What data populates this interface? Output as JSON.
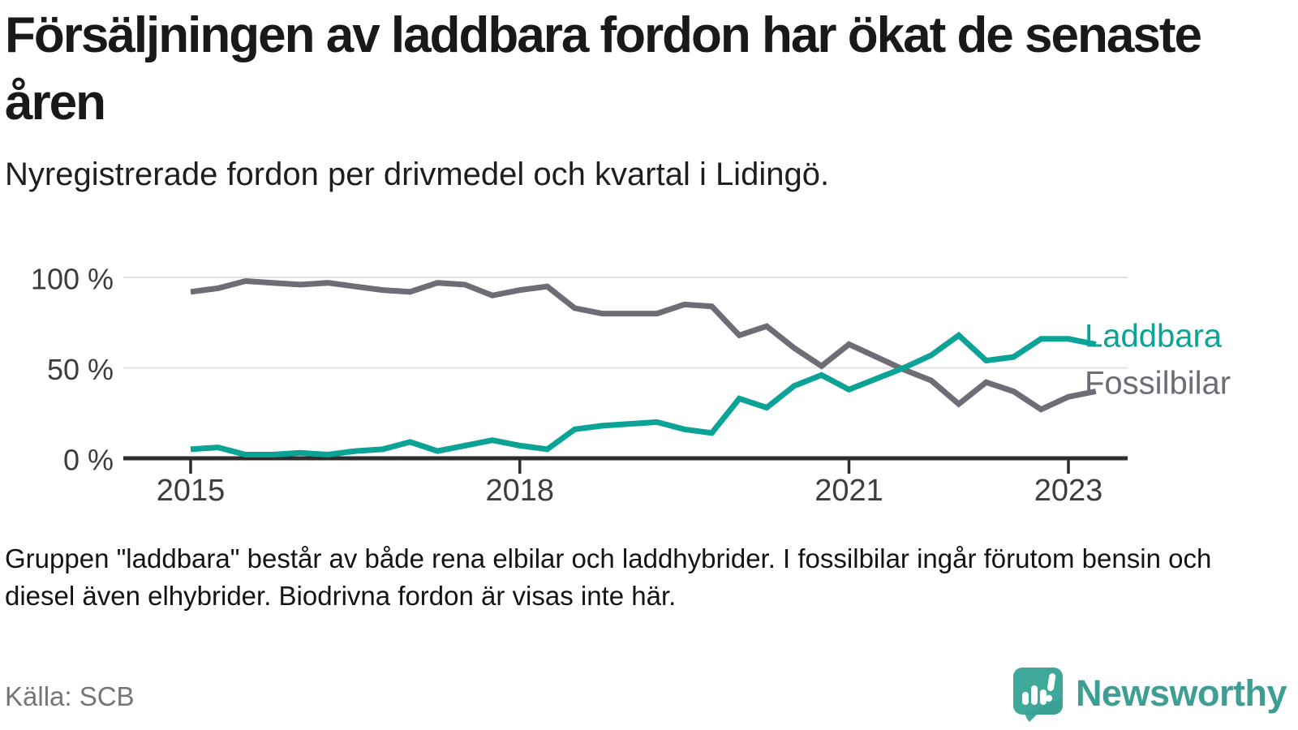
{
  "header": {
    "title": "Försäljningen av laddbara fordon har ökat de senaste åren",
    "subtitle": "Nyregistrerade fordon per drivmedel och kvartal i Lidingö."
  },
  "chart_data": {
    "type": "line",
    "title": "Nyregistrerade fordon per drivmedel och kvartal i Lidingö",
    "x_unit": "quarter",
    "categories": [
      "2015-Q1",
      "2015-Q2",
      "2015-Q3",
      "2015-Q4",
      "2016-Q1",
      "2016-Q2",
      "2016-Q3",
      "2016-Q4",
      "2017-Q1",
      "2017-Q2",
      "2017-Q3",
      "2017-Q4",
      "2018-Q1",
      "2018-Q2",
      "2018-Q3",
      "2018-Q4",
      "2019-Q1",
      "2019-Q2",
      "2019-Q3",
      "2019-Q4",
      "2020-Q1",
      "2020-Q2",
      "2020-Q3",
      "2020-Q4",
      "2021-Q1",
      "2021-Q2",
      "2021-Q3",
      "2021-Q4",
      "2022-Q1",
      "2022-Q2",
      "2022-Q3",
      "2022-Q4",
      "2023-Q1",
      "2023-Q2"
    ],
    "series": [
      {
        "name": "Laddbara",
        "color": "#0aa396",
        "unit": "%",
        "values": [
          5,
          6,
          2,
          2,
          3,
          2,
          4,
          5,
          9,
          4,
          7,
          10,
          7,
          5,
          16,
          18,
          19,
          20,
          16,
          14,
          33,
          28,
          40,
          46,
          38,
          44,
          50,
          57,
          68,
          54,
          56,
          66,
          66,
          63
        ]
      },
      {
        "name": "Fossilbilar",
        "color": "#6f6c75",
        "unit": "%",
        "values": [
          92,
          94,
          98,
          97,
          96,
          97,
          95,
          93,
          92,
          97,
          96,
          90,
          93,
          95,
          83,
          80,
          80,
          80,
          85,
          84,
          68,
          73,
          61,
          51,
          63,
          56,
          49,
          43,
          30,
          42,
          37,
          27,
          34,
          37
        ]
      }
    ],
    "ylim": [
      0,
      100
    ],
    "y_ticks": [
      {
        "value": 0,
        "label": "0 %"
      },
      {
        "value": 50,
        "label": "50 %"
      },
      {
        "value": 100,
        "label": "100 %"
      }
    ],
    "x_ticks": [
      {
        "index": 0,
        "label": "2015"
      },
      {
        "index": 12,
        "label": "2018"
      },
      {
        "index": 24,
        "label": "2021"
      },
      {
        "index": 32,
        "label": "2023"
      }
    ],
    "grid": "horizontal",
    "legend_position": "right-of-line-end"
  },
  "footnote": {
    "text": "Gruppen \"laddbara\" består av både rena elbilar och laddhybrider. I fossilbilar ingår förutom bensin och diesel även elhybrider. Biodrivna fordon är visas inte här."
  },
  "source": {
    "text": "Källa: SCB"
  },
  "branding": {
    "name": "Newsworthy"
  }
}
